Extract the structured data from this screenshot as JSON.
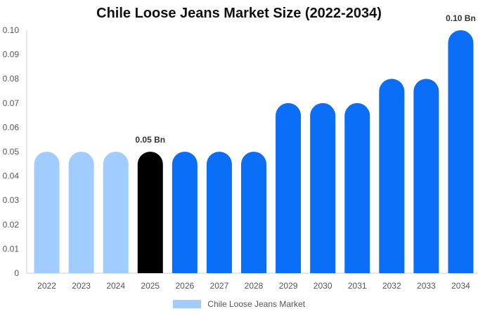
{
  "chart_data": {
    "type": "bar",
    "title": "Chile Loose Jeans Market Size (2022-2034)",
    "categories": [
      "2022",
      "2023",
      "2024",
      "2025",
      "2026",
      "2027",
      "2028",
      "2029",
      "2030",
      "2031",
      "2032",
      "2033",
      "2034"
    ],
    "series": [
      {
        "name": "Chile Loose Jeans Market",
        "values": [
          0.05,
          0.05,
          0.05,
          0.05,
          0.05,
          0.05,
          0.05,
          0.07,
          0.07,
          0.07,
          0.08,
          0.08,
          0.1
        ]
      }
    ],
    "bar_colors": [
      "#a0cdfd",
      "#a0cdfd",
      "#a0cdfd",
      "#000000",
      "#0a6ef7",
      "#0a6ef7",
      "#0a6ef7",
      "#0a6ef7",
      "#0a6ef7",
      "#0a6ef7",
      "#0a6ef7",
      "#0a6ef7",
      "#0a6ef7"
    ],
    "y_ticks": [
      "0",
      "0.01",
      "0.02",
      "0.03",
      "0.04",
      "0.05",
      "0.06",
      "0.07",
      "0.08",
      "0.09",
      "0.10"
    ],
    "ylim": [
      0,
      0.1
    ],
    "annotations": [
      {
        "category": "2025",
        "text": "0.05 Bn"
      },
      {
        "category": "2034",
        "text": "0.10 Bn"
      }
    ],
    "legend": {
      "label": "Chile Loose Jeans Market",
      "color": "#a0cdfd",
      "position": "bottom"
    },
    "grid": false
  }
}
